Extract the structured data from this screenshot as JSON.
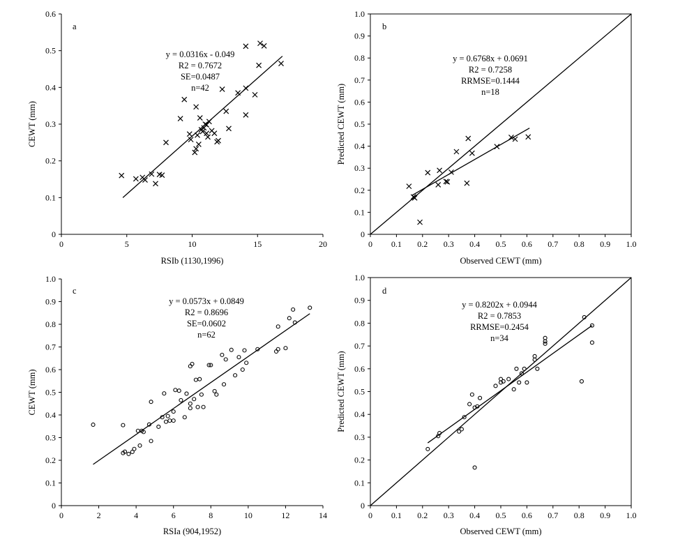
{
  "chart_data": [
    {
      "id": "a",
      "type": "scatter",
      "panel_label": "a",
      "xlabel": "RSIb (1130,1996)",
      "ylabel": "CEWT (mm)",
      "xlim": [
        0,
        20
      ],
      "ylim": [
        0,
        0.6
      ],
      "xticks": [
        0,
        5,
        10,
        15,
        20
      ],
      "xtick_labels": [
        "0",
        "5",
        "10",
        "15",
        "20"
      ],
      "yticks": [
        0,
        0.1,
        0.2,
        0.3,
        0.4,
        0.5,
        0.6
      ],
      "ytick_labels": [
        "0",
        "0.1",
        "0.2",
        "0.3",
        "0.4",
        "0.5",
        "0.6"
      ],
      "marker": "x",
      "equation": [
        "y = 0.0316x - 0.049",
        "R2 = 0.7672",
        "SE=0.0487",
        "n=42"
      ],
      "regression_line": {
        "x": [
          4.7,
          16.9
        ],
        "y": [
          0.1,
          0.485
        ]
      },
      "one_to_one": false,
      "points": [
        [
          4.6,
          0.16
        ],
        [
          5.7,
          0.151
        ],
        [
          6.2,
          0.155
        ],
        [
          6.4,
          0.148
        ],
        [
          6.9,
          0.164
        ],
        [
          7.2,
          0.138
        ],
        [
          7.5,
          0.163
        ],
        [
          7.7,
          0.161
        ],
        [
          8.0,
          0.25
        ],
        [
          9.1,
          0.315
        ],
        [
          9.4,
          0.367
        ],
        [
          9.8,
          0.273
        ],
        [
          9.9,
          0.258
        ],
        [
          10.2,
          0.223
        ],
        [
          10.3,
          0.233
        ],
        [
          10.3,
          0.347
        ],
        [
          10.4,
          0.27
        ],
        [
          10.5,
          0.245
        ],
        [
          10.6,
          0.317
        ],
        [
          10.7,
          0.285
        ],
        [
          10.8,
          0.28
        ],
        [
          10.9,
          0.29
        ],
        [
          11.0,
          0.3
        ],
        [
          11.1,
          0.298
        ],
        [
          11.1,
          0.275
        ],
        [
          11.2,
          0.265
        ],
        [
          11.3,
          0.307
        ],
        [
          11.5,
          0.282
        ],
        [
          11.7,
          0.275
        ],
        [
          11.9,
          0.252
        ],
        [
          12.0,
          0.255
        ],
        [
          12.3,
          0.395
        ],
        [
          12.6,
          0.335
        ],
        [
          12.8,
          0.288
        ],
        [
          13.5,
          0.385
        ],
        [
          14.1,
          0.398
        ],
        [
          14.1,
          0.325
        ],
        [
          14.1,
          0.512
        ],
        [
          14.8,
          0.38
        ],
        [
          15.1,
          0.46
        ],
        [
          15.2,
          0.52
        ],
        [
          15.5,
          0.513
        ],
        [
          16.8,
          0.465
        ]
      ]
    },
    {
      "id": "b",
      "type": "scatter",
      "panel_label": "b",
      "xlabel": "Observed CEWT (mm)",
      "ylabel": "Predicted CEWT (mm)",
      "xlim": [
        0,
        1.0
      ],
      "ylim": [
        0,
        1.0
      ],
      "xticks": [
        0,
        0.1,
        0.2,
        0.3,
        0.4,
        0.5,
        0.6,
        0.7,
        0.8,
        0.9,
        1.0
      ],
      "xtick_labels": [
        "0",
        "0.1",
        "0.2",
        "0.3",
        "0.4",
        "0.5",
        "0.6",
        "0.7",
        "0.8",
        "0.9",
        "1.0"
      ],
      "yticks": [
        0,
        0.1,
        0.2,
        0.3,
        0.4,
        0.5,
        0.6,
        0.7,
        0.8,
        0.9,
        1.0
      ],
      "ytick_labels": [
        "0",
        "0.1",
        "0.2",
        "0.3",
        "0.4",
        "0.5",
        "0.6",
        "0.7",
        "0.8",
        "0.9",
        "1.0"
      ],
      "marker": "x",
      "equation": [
        "y = 0.6768x + 0.0691",
        "R2 = 0.7258",
        "RRMSE=0.1444",
        "n=18"
      ],
      "regression_line": {
        "x": [
          0.16,
          0.61
        ],
        "y": [
          0.177,
          0.482
        ]
      },
      "one_to_one": true,
      "points": [
        [
          0.148,
          0.218
        ],
        [
          0.165,
          0.17
        ],
        [
          0.17,
          0.165
        ],
        [
          0.19,
          0.055
        ],
        [
          0.22,
          0.28
        ],
        [
          0.26,
          0.225
        ],
        [
          0.265,
          0.29
        ],
        [
          0.29,
          0.24
        ],
        [
          0.295,
          0.238
        ],
        [
          0.31,
          0.282
        ],
        [
          0.33,
          0.375
        ],
        [
          0.37,
          0.232
        ],
        [
          0.375,
          0.435
        ],
        [
          0.39,
          0.368
        ],
        [
          0.485,
          0.398
        ],
        [
          0.54,
          0.44
        ],
        [
          0.555,
          0.432
        ],
        [
          0.605,
          0.442
        ]
      ]
    },
    {
      "id": "c",
      "type": "scatter",
      "panel_label": "c",
      "xlabel": "RSIa (904,1952)",
      "ylabel": "CEWT (mm)",
      "xlim": [
        0,
        14
      ],
      "ylim": [
        0,
        1.0
      ],
      "xticks": [
        0,
        2,
        4,
        6,
        8,
        10,
        12,
        14
      ],
      "xtick_labels": [
        "0",
        "2",
        "4",
        "6",
        "8",
        "10",
        "12",
        "14"
      ],
      "yticks": [
        0,
        0.1,
        0.2,
        0.3,
        0.4,
        0.5,
        0.6,
        0.7,
        0.8,
        0.9,
        1.0
      ],
      "ytick_labels": [
        "0",
        "0.1",
        "0.2",
        "0.3",
        "0.4",
        "0.5",
        "0.6",
        "0.7",
        "0.8",
        "0.9",
        "1.0"
      ],
      "marker": "o",
      "equation": [
        "y = 0.0573x + 0.0849",
        "R2 = 0.8696",
        "SE=0.0602",
        "n=62"
      ],
      "regression_line": {
        "x": [
          1.7,
          13.3
        ],
        "y": [
          0.182,
          0.847
        ]
      },
      "one_to_one": false,
      "points": [
        [
          1.7,
          0.357
        ],
        [
          3.3,
          0.355
        ],
        [
          3.3,
          0.232
        ],
        [
          3.4,
          0.238
        ],
        [
          3.6,
          0.228
        ],
        [
          3.8,
          0.237
        ],
        [
          3.9,
          0.25
        ],
        [
          4.1,
          0.33
        ],
        [
          4.2,
          0.265
        ],
        [
          4.3,
          0.33
        ],
        [
          4.4,
          0.325
        ],
        [
          4.7,
          0.358
        ],
        [
          4.8,
          0.285
        ],
        [
          4.8,
          0.458
        ],
        [
          5.2,
          0.348
        ],
        [
          5.4,
          0.39
        ],
        [
          5.5,
          0.495
        ],
        [
          5.6,
          0.37
        ],
        [
          5.7,
          0.395
        ],
        [
          5.8,
          0.375
        ],
        [
          6.0,
          0.375
        ],
        [
          6.0,
          0.415
        ],
        [
          6.1,
          0.51
        ],
        [
          6.3,
          0.507
        ],
        [
          6.4,
          0.465
        ],
        [
          6.6,
          0.39
        ],
        [
          6.7,
          0.494
        ],
        [
          6.9,
          0.43
        ],
        [
          6.9,
          0.45
        ],
        [
          6.9,
          0.615
        ],
        [
          7.0,
          0.625
        ],
        [
          7.1,
          0.47
        ],
        [
          7.2,
          0.555
        ],
        [
          7.3,
          0.435
        ],
        [
          7.4,
          0.558
        ],
        [
          7.5,
          0.49
        ],
        [
          7.6,
          0.435
        ],
        [
          7.9,
          0.62
        ],
        [
          8.0,
          0.62
        ],
        [
          8.2,
          0.505
        ],
        [
          8.3,
          0.49
        ],
        [
          8.6,
          0.665
        ],
        [
          8.7,
          0.535
        ],
        [
          8.8,
          0.645
        ],
        [
          9.1,
          0.687
        ],
        [
          9.3,
          0.575
        ],
        [
          9.5,
          0.655
        ],
        [
          9.7,
          0.6
        ],
        [
          9.8,
          0.685
        ],
        [
          9.9,
          0.63
        ],
        [
          10.5,
          0.69
        ],
        [
          11.5,
          0.68
        ],
        [
          11.6,
          0.79
        ],
        [
          11.6,
          0.69
        ],
        [
          12.0,
          0.695
        ],
        [
          12.2,
          0.827
        ],
        [
          12.4,
          0.865
        ],
        [
          12.5,
          0.808
        ],
        [
          13.3,
          0.873
        ]
      ]
    },
    {
      "id": "d",
      "type": "scatter",
      "panel_label": "d",
      "xlabel": "Observed CEWT (mm)",
      "ylabel": "Predicted CEWT (mm)",
      "xlim": [
        0,
        1.0
      ],
      "ylim": [
        0,
        1.0
      ],
      "xticks": [
        0,
        0.1,
        0.2,
        0.3,
        0.4,
        0.5,
        0.6,
        0.7,
        0.8,
        0.9,
        1.0
      ],
      "xtick_labels": [
        "0",
        "0.1",
        "0.2",
        "0.3",
        "0.4",
        "0.5",
        "0.6",
        "0.7",
        "0.8",
        "0.9",
        "1.0"
      ],
      "yticks": [
        0,
        0.1,
        0.2,
        0.3,
        0.4,
        0.5,
        0.6,
        0.7,
        0.8,
        0.9,
        1.0
      ],
      "ytick_labels": [
        "0",
        "0.1",
        "0.2",
        "0.3",
        "0.4",
        "0.5",
        "0.6",
        "0.7",
        "0.8",
        "0.9",
        "1.0"
      ],
      "marker": "o",
      "equation": [
        "y = 0.8202x + 0.0944",
        "R2 = 0.7853",
        "RRMSE=0.2454",
        "n=34"
      ],
      "regression_line": {
        "x": [
          0.22,
          0.85
        ],
        "y": [
          0.275,
          0.79
        ]
      },
      "one_to_one": true,
      "points": [
        [
          0.22,
          0.248
        ],
        [
          0.26,
          0.305
        ],
        [
          0.265,
          0.318
        ],
        [
          0.34,
          0.325
        ],
        [
          0.35,
          0.335
        ],
        [
          0.36,
          0.388
        ],
        [
          0.38,
          0.445
        ],
        [
          0.39,
          0.487
        ],
        [
          0.4,
          0.43
        ],
        [
          0.4,
          0.167
        ],
        [
          0.41,
          0.435
        ],
        [
          0.42,
          0.472
        ],
        [
          0.48,
          0.525
        ],
        [
          0.5,
          0.54
        ],
        [
          0.5,
          0.555
        ],
        [
          0.51,
          0.545
        ],
        [
          0.53,
          0.555
        ],
        [
          0.55,
          0.51
        ],
        [
          0.56,
          0.6
        ],
        [
          0.57,
          0.54
        ],
        [
          0.58,
          0.58
        ],
        [
          0.59,
          0.6
        ],
        [
          0.6,
          0.54
        ],
        [
          0.63,
          0.64
        ],
        [
          0.63,
          0.655
        ],
        [
          0.64,
          0.6
        ],
        [
          0.67,
          0.71
        ],
        [
          0.67,
          0.72
        ],
        [
          0.67,
          0.735
        ],
        [
          0.81,
          0.545
        ],
        [
          0.82,
          0.826
        ],
        [
          0.85,
          0.79
        ],
        [
          0.85,
          0.715
        ]
      ]
    }
  ]
}
